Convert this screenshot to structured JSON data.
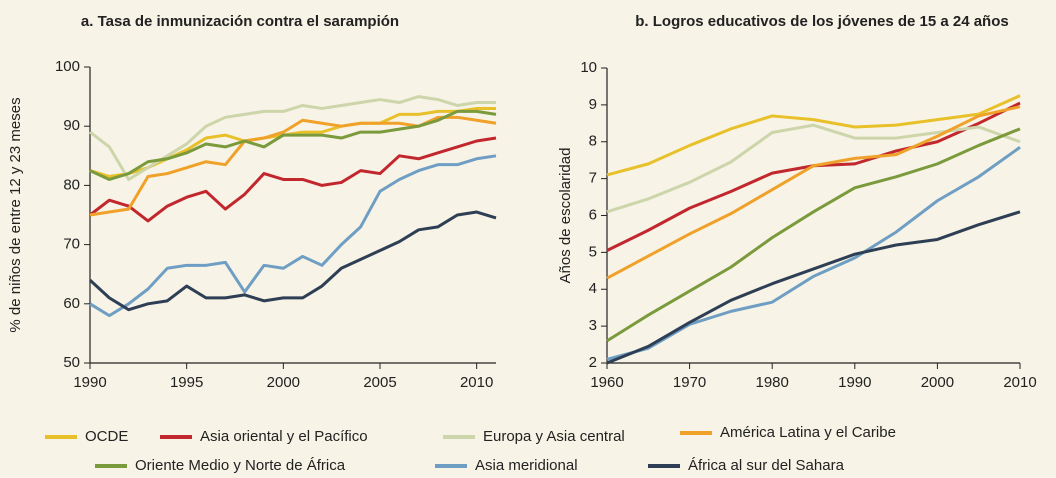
{
  "chart_data": [
    {
      "type": "line",
      "title": "a.  Tasa de inmunización contra el sarampión",
      "y_label": "% de niños de entre 12 y 23 meses",
      "x": [
        1990,
        1991,
        1992,
        1993,
        1994,
        1995,
        1996,
        1997,
        1998,
        1999,
        2000,
        2001,
        2002,
        2003,
        2004,
        2005,
        2006,
        2007,
        2008,
        2009,
        2010,
        2011
      ],
      "xlim": [
        1990,
        2011
      ],
      "xticks": [
        1990,
        1995,
        2000,
        2005,
        2010
      ],
      "ylim": [
        50,
        100
      ],
      "yticks": [
        50,
        60,
        70,
        80,
        90,
        100
      ],
      "series": [
        {
          "name": "OCDE",
          "color": "#e8c02a",
          "values": [
            82.5,
            81.5,
            82,
            83,
            84.5,
            86,
            88,
            88.5,
            87.5,
            88,
            88.5,
            89,
            89,
            90,
            90.5,
            90.5,
            92,
            92,
            92.5,
            92.5,
            93,
            93
          ]
        },
        {
          "name": "Asia oriental y el Pacífico",
          "color": "#c1272d",
          "values": [
            75,
            77.5,
            76.5,
            74,
            76.5,
            78,
            79,
            76,
            78.5,
            82,
            81,
            81,
            80,
            80.5,
            82.5,
            82,
            85,
            84.5,
            85.5,
            86.5,
            87.5,
            88
          ]
        },
        {
          "name": "Europa y Asia central",
          "color": "#cdd5ab",
          "values": [
            89,
            86.5,
            81,
            83,
            85,
            87,
            90,
            91.5,
            92,
            92.5,
            92.5,
            93.5,
            93,
            93.5,
            94,
            94.5,
            94,
            95,
            94.5,
            93.5,
            94,
            94
          ]
        },
        {
          "name": "América Latina y el Caribe",
          "color": "#f0a129",
          "values": [
            75,
            75.5,
            76,
            81.5,
            82,
            83,
            84,
            83.5,
            87.5,
            88,
            89,
            91,
            90.5,
            90,
            90.5,
            90.5,
            90.5,
            90,
            91.5,
            91.5,
            91,
            90.5
          ]
        },
        {
          "name": "Oriente Medio y Norte de África",
          "color": "#7a9a3c",
          "values": [
            82.5,
            81,
            82,
            84,
            84.5,
            85.5,
            87,
            86.5,
            87.5,
            86.5,
            88.5,
            88.5,
            88.5,
            88,
            89,
            89,
            89.5,
            90,
            91,
            92.5,
            92.5,
            92
          ]
        },
        {
          "name": "Asia meridional",
          "color": "#6f9ec4",
          "values": [
            60,
            58,
            60,
            62.5,
            66,
            66.5,
            66.5,
            67,
            62,
            66.5,
            66,
            68,
            66.5,
            70,
            73,
            79,
            81,
            82.5,
            83.5,
            83.5,
            84.5,
            85
          ]
        },
        {
          "name": "África al sur del Sahara",
          "color": "#2e3f55",
          "values": [
            64,
            61,
            59,
            60,
            60.5,
            63,
            61,
            61,
            61.5,
            60.5,
            61,
            61,
            63,
            66,
            67.5,
            69,
            70.5,
            72.5,
            73,
            75,
            75.5,
            74.5
          ]
        }
      ]
    },
    {
      "type": "line",
      "title": "b.  Logros educativos de los jóvenes de 15 a 24 años",
      "y_label": "Años de escolaridad",
      "x": [
        1960,
        1965,
        1970,
        1975,
        1980,
        1985,
        1990,
        1995,
        2000,
        2005,
        2010
      ],
      "xlim": [
        1960,
        2010
      ],
      "xticks": [
        1960,
        1970,
        1980,
        1990,
        2000,
        2010
      ],
      "ylim": [
        2,
        10
      ],
      "yticks": [
        2,
        3,
        4,
        5,
        6,
        7,
        8,
        9,
        10
      ],
      "series": [
        {
          "color": "#e8c02a",
          "values": [
            7.1,
            7.4,
            7.9,
            8.35,
            8.7,
            8.6,
            8.4,
            8.45,
            8.6,
            8.75,
            9.25
          ]
        },
        {
          "color": "#c1272d",
          "values": [
            5.05,
            5.6,
            6.2,
            6.65,
            7.15,
            7.35,
            7.4,
            7.75,
            8.0,
            8.5,
            9.05
          ]
        },
        {
          "color": "#cdd5ab",
          "values": [
            6.1,
            6.45,
            6.9,
            7.45,
            8.25,
            8.45,
            8.1,
            8.1,
            8.25,
            8.4,
            8.0
          ]
        },
        {
          "color": "#f0a129",
          "values": [
            4.3,
            4.9,
            5.5,
            6.05,
            6.7,
            7.35,
            7.55,
            7.65,
            8.15,
            8.7,
            8.95
          ]
        },
        {
          "color": "#7a9a3c",
          "values": [
            2.6,
            3.3,
            3.95,
            4.6,
            5.4,
            6.1,
            6.75,
            7.05,
            7.4,
            7.9,
            8.35
          ]
        },
        {
          "color": "#6f9ec4",
          "values": [
            2.1,
            2.4,
            3.05,
            3.4,
            3.65,
            4.35,
            4.85,
            5.55,
            6.4,
            7.05,
            7.85
          ]
        },
        {
          "color": "#2e3f55",
          "values": [
            2.0,
            2.45,
            3.1,
            3.7,
            4.15,
            4.55,
            4.95,
            5.2,
            5.35,
            5.75,
            6.1
          ]
        }
      ]
    }
  ]
}
